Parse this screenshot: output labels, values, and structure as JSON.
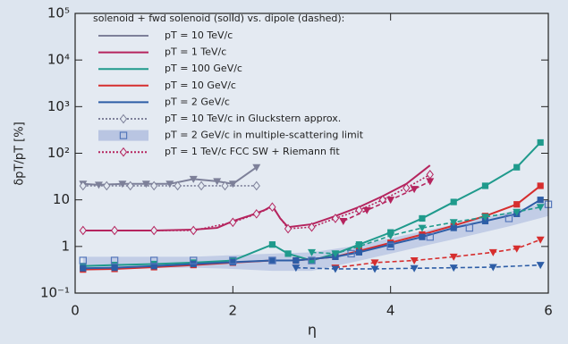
{
  "chart_data": {
    "type": "line",
    "xlabel": "η",
    "ylabel": "δpT/pT [%]",
    "legend_title": "solenoid + fwd solenoid (solid) vs. dipole (dashed):",
    "legend": "top-left",
    "ylog": true,
    "xlim": [
      0,
      6
    ],
    "xticks": [
      0,
      2,
      4,
      6
    ],
    "ylim": [
      0.1,
      100000
    ],
    "yticks": [
      {
        "value": 0.1,
        "label": "10⁻¹"
      },
      1,
      10,
      {
        "value": 100,
        "label": "10²"
      },
      {
        "value": 1000,
        "label": "10³"
      },
      {
        "value": 10000,
        "label": "10⁴"
      },
      {
        "value": 100000,
        "label": "10⁵"
      }
    ],
    "series": [
      {
        "name": "pT = 10 TeV/c",
        "color": "#7d8099",
        "dash": "solid",
        "marker": "triangle",
        "x": [
          0.1,
          0.3,
          0.6,
          0.9,
          1.2,
          1.5,
          1.8,
          2.0,
          2.3
        ],
        "values": [
          22,
          21,
          22,
          22,
          22,
          28,
          25,
          22,
          50
        ]
      },
      {
        "name": "pT = 1 TeV/c",
        "color": "#b5245e",
        "dash": "solid",
        "marker": "none",
        "x": [
          0.1,
          0.5,
          1.0,
          1.5,
          1.8,
          2.0,
          2.2,
          2.4,
          2.5,
          2.6,
          2.7,
          3.0,
          3.3,
          3.6,
          3.9,
          4.2,
          4.5
        ],
        "values": [
          2.2,
          2.2,
          2.2,
          2.3,
          2.5,
          3.5,
          4.5,
          6,
          7.5,
          4,
          2.6,
          3,
          4.5,
          7,
          12,
          22,
          55
        ]
      },
      {
        "name": "pT = 100 GeV/c",
        "color": "#1f9a8c",
        "dash": "solid",
        "marker": "square",
        "x": [
          0.1,
          0.5,
          1.0,
          1.5,
          2.0,
          2.5,
          2.7,
          3.0,
          3.3,
          3.6,
          4.0,
          4.4,
          4.8,
          5.2,
          5.6,
          5.9
        ],
        "values": [
          0.38,
          0.4,
          0.42,
          0.45,
          0.5,
          1.1,
          0.7,
          0.5,
          0.7,
          1.1,
          2,
          4,
          9,
          20,
          50,
          170
        ]
      },
      {
        "name": "pT = 10 GeV/c",
        "color": "#d62e2e",
        "dash": "solid",
        "marker": "square",
        "x": [
          0.1,
          0.5,
          1.0,
          1.5,
          2.0,
          2.5,
          2.8,
          3.3,
          3.6,
          4.0,
          4.4,
          4.8,
          5.2,
          5.6,
          5.9
        ],
        "values": [
          0.32,
          0.33,
          0.36,
          0.4,
          0.45,
          0.5,
          0.5,
          0.6,
          0.8,
          1.2,
          1.8,
          2.8,
          4.5,
          8,
          20
        ]
      },
      {
        "name": "pT = 2 GeV/c",
        "color": "#2d5da6",
        "dash": "solid",
        "marker": "square",
        "x": [
          0.1,
          0.5,
          1.0,
          1.5,
          2.0,
          2.5,
          2.8,
          3.3,
          3.6,
          4.0,
          4.4,
          4.8,
          5.2,
          5.6,
          5.9
        ],
        "values": [
          0.34,
          0.35,
          0.38,
          0.42,
          0.46,
          0.5,
          0.5,
          0.6,
          0.75,
          1.1,
          1.6,
          2.5,
          3.5,
          5,
          10
        ]
      },
      {
        "name": "pT = 10 TeV/c in Gluckstern approx.",
        "color": "#7d8099",
        "dash": "dotted",
        "marker": "diamond-open",
        "x": [
          0.1,
          0.4,
          0.7,
          1.0,
          1.3,
          1.6,
          1.9,
          2.3
        ],
        "values": [
          20,
          20,
          20,
          20,
          20,
          20,
          20,
          20
        ]
      },
      {
        "name": "pT = 2 GeV/c in multiple-scattering limit",
        "color": "#5577bb",
        "dash": "none",
        "marker": "square-open",
        "band_color": "#b9c5e2",
        "x": [
          0.1,
          0.5,
          1.0,
          1.5,
          2.0,
          2.5,
          3.0,
          3.5,
          4.0,
          4.5,
          5.0,
          5.5,
          6.0
        ],
        "values": [
          0.5,
          0.5,
          0.5,
          0.5,
          0.5,
          0.5,
          0.5,
          0.7,
          1.0,
          1.6,
          2.5,
          4,
          8
        ],
        "band": {
          "lower": [
            0.35,
            0.35,
            0.35,
            0.35,
            0.33,
            0.3,
            0.3,
            0.45,
            0.7,
            1.1,
            1.7,
            2.7,
            4.5
          ],
          "upper": [
            0.6,
            0.6,
            0.6,
            0.6,
            0.65,
            0.7,
            0.75,
            1.0,
            1.5,
            2.3,
            3.5,
            5.5,
            9
          ]
        }
      },
      {
        "name": "pT = 1 TeV/c FCC SW + Riemann fit",
        "color": "#b5245e",
        "dash": "dotted",
        "marker": "diamond-open",
        "x": [
          0.1,
          0.5,
          1.0,
          1.5,
          2.0,
          2.3,
          2.5,
          2.7,
          3.0,
          3.3,
          3.6,
          3.9,
          4.2,
          4.5
        ],
        "values": [
          2.2,
          2.2,
          2.2,
          2.2,
          3.3,
          5,
          7,
          2.4,
          2.6,
          4,
          6,
          10,
          18,
          35
        ]
      },
      {
        "color": "#b5245e",
        "dash": "dashed",
        "marker": "triangle",
        "x": [
          3.4,
          3.7,
          4.0,
          4.3,
          4.5
        ],
        "values": [
          3.5,
          6,
          10,
          17,
          25
        ]
      },
      {
        "color": "#1f9a8c",
        "dash": "dashed",
        "marker": "triangle",
        "x": [
          3.0,
          3.3,
          3.6,
          4.0,
          4.4,
          4.8,
          5.2,
          5.6,
          5.9
        ],
        "values": [
          0.75,
          0.7,
          1.0,
          1.7,
          2.5,
          3.3,
          4.3,
          5.5,
          7
        ]
      },
      {
        "color": "#d62e2e",
        "dash": "dashed",
        "marker": "triangle",
        "x": [
          3.3,
          3.8,
          4.3,
          4.8,
          5.3,
          5.6,
          5.9
        ],
        "values": [
          0.35,
          0.45,
          0.5,
          0.6,
          0.75,
          0.9,
          1.4
        ]
      },
      {
        "color": "#2d5da6",
        "dash": "dashed",
        "marker": "triangle",
        "x": [
          2.8,
          3.3,
          3.8,
          4.3,
          4.8,
          5.3,
          5.9
        ],
        "values": [
          0.35,
          0.33,
          0.33,
          0.34,
          0.35,
          0.36,
          0.4
        ]
      }
    ]
  }
}
